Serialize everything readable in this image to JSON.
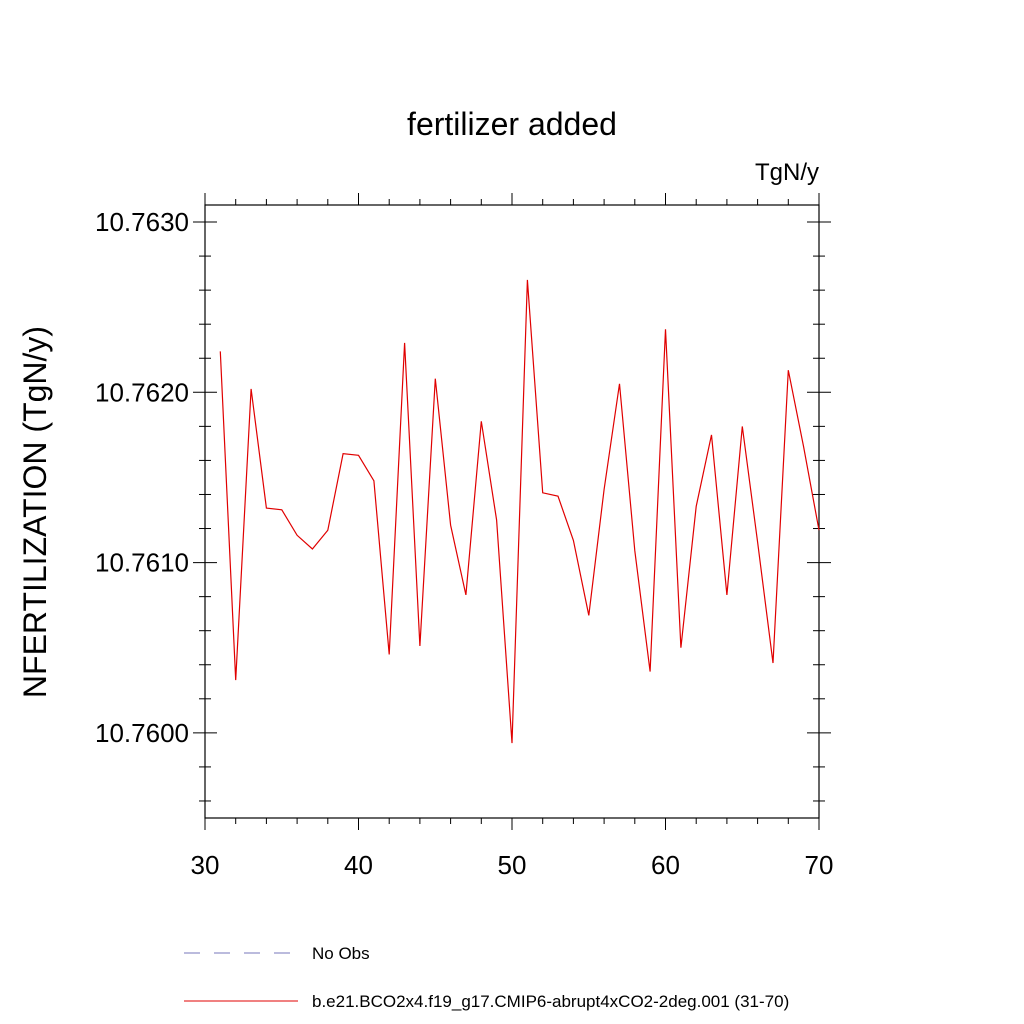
{
  "chart_data": {
    "type": "line",
    "title": "fertilizer added",
    "units_label": "TgN/y",
    "ylabel": "NFERTILIZATION  (TgN/y)",
    "xlabel": "",
    "xlim": [
      30,
      70
    ],
    "ylim": [
      10.7595,
      10.7631
    ],
    "x_ticks": [
      30,
      40,
      50,
      60,
      70
    ],
    "x_tick_labels": [
      "30",
      "40",
      "50",
      "60",
      "70"
    ],
    "y_ticks": [
      10.76,
      10.761,
      10.762,
      10.763
    ],
    "y_tick_labels": [
      "10.7600",
      "10.7610",
      "10.7620",
      "10.7630"
    ],
    "grid": false,
    "legend": {
      "placement": "bottom",
      "entries": [
        {
          "label": "No Obs",
          "color": "#7777bb",
          "style": "dashed"
        },
        {
          "label": "b.e21.BCO2x4.f19_g17.CMIP6-abrupt4xCO2-2deg.001 (31-70)",
          "color": "#e00000",
          "style": "solid"
        }
      ]
    },
    "series": [
      {
        "name": "b.e21.BCO2x4.f19_g17.CMIP6-abrupt4xCO2-2deg.001 (31-70)",
        "color": "#e00000",
        "x": [
          31,
          32,
          33,
          34,
          35,
          36,
          37,
          38,
          39,
          40,
          41,
          42,
          43,
          44,
          45,
          46,
          47,
          48,
          49,
          50,
          51,
          52,
          53,
          54,
          55,
          56,
          57,
          58,
          59,
          60,
          61,
          62,
          63,
          64,
          65,
          66,
          67,
          68,
          69,
          70
        ],
        "y": [
          10.76224,
          10.76031,
          10.76202,
          10.76132,
          10.76131,
          10.76116,
          10.76108,
          10.76119,
          10.76164,
          10.76163,
          10.76148,
          10.76046,
          10.76229,
          10.76051,
          10.76208,
          10.76122,
          10.76081,
          10.76183,
          10.76125,
          10.75994,
          10.76266,
          10.76141,
          10.76139,
          10.76113,
          10.76069,
          10.76143,
          10.76205,
          10.76107,
          10.76036,
          10.76237,
          10.7605,
          10.76133,
          10.76175,
          10.76081,
          10.7618,
          10.76112,
          10.76041,
          10.76213,
          10.76168,
          10.76119
        ]
      }
    ]
  }
}
